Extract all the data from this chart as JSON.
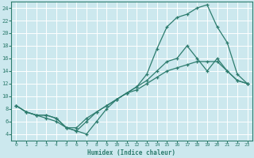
{
  "title": "",
  "xlabel": "Humidex (Indice chaleur)",
  "bg_color": "#cce8ee",
  "grid_color": "#ffffff",
  "line_color": "#2d7c6e",
  "xlim": [
    -0.5,
    23.5
  ],
  "ylim": [
    3,
    25
  ],
  "xticks": [
    0,
    1,
    2,
    3,
    4,
    5,
    6,
    7,
    8,
    9,
    10,
    11,
    12,
    13,
    14,
    15,
    16,
    17,
    18,
    19,
    20,
    21,
    22,
    23
  ],
  "yticks": [
    4,
    6,
    8,
    10,
    12,
    14,
    16,
    18,
    20,
    22,
    24
  ],
  "line1_x": [
    0,
    1,
    2,
    3,
    4,
    5,
    6,
    7,
    8,
    9,
    10,
    11,
    12,
    13,
    14,
    15,
    16,
    17,
    18,
    19,
    20,
    21,
    22,
    23
  ],
  "line1_y": [
    8.5,
    7.5,
    7.0,
    6.5,
    6.0,
    5.0,
    4.5,
    4.0,
    6.0,
    8.0,
    9.5,
    10.5,
    11.5,
    13.5,
    17.5,
    21.0,
    22.5,
    23.0,
    24.0,
    24.5,
    21.0,
    18.5,
    13.5,
    12.0
  ],
  "line2_x": [
    0,
    1,
    2,
    3,
    4,
    5,
    6,
    7,
    8,
    9,
    10,
    11,
    12,
    13,
    14,
    15,
    16,
    17,
    18,
    19,
    20,
    21,
    22,
    23
  ],
  "line2_y": [
    8.5,
    7.5,
    7.0,
    7.0,
    6.5,
    5.0,
    4.5,
    6.0,
    7.5,
    8.5,
    9.5,
    10.5,
    11.5,
    12.5,
    14.0,
    15.5,
    16.0,
    18.0,
    16.0,
    14.0,
    16.0,
    14.0,
    12.5,
    12.0
  ],
  "line3_x": [
    0,
    1,
    2,
    3,
    4,
    5,
    6,
    7,
    8,
    9,
    10,
    11,
    12,
    13,
    14,
    15,
    16,
    17,
    18,
    19,
    20,
    21,
    22,
    23
  ],
  "line3_y": [
    8.5,
    7.5,
    7.0,
    7.0,
    6.5,
    5.0,
    5.0,
    6.5,
    7.5,
    8.5,
    9.5,
    10.5,
    11.0,
    12.0,
    13.0,
    14.0,
    14.5,
    15.0,
    15.5,
    15.5,
    15.5,
    14.0,
    12.5,
    12.0
  ]
}
